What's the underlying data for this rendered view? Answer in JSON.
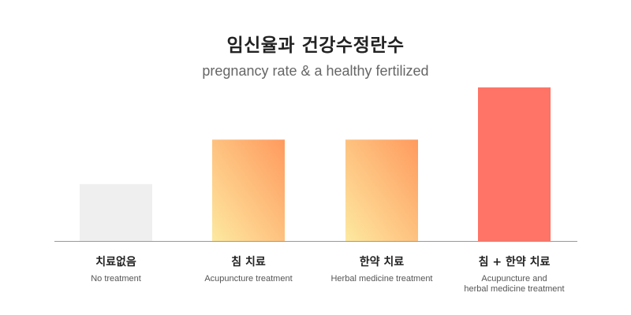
{
  "title": "임신율과 건강수정란수",
  "subtitle": "pregnancy rate & a healthy fertilized",
  "colors": {
    "none": "#efefef",
    "gradient_light": "#fde9a0",
    "gradient_dark": "#ff9a5e",
    "combined": "#ff7466",
    "baseline": "#999999"
  },
  "chart_data": {
    "type": "bar",
    "title": "임신율과 건강수정란수",
    "subtitle": "pregnancy rate & a healthy fertilized",
    "categories": [
      {
        "ko": "치료없음",
        "en": "No treatment"
      },
      {
        "ko": "침 치료",
        "en": "Acupuncture treatment"
      },
      {
        "ko": "한약 치료",
        "en": "Herbal medicine treatment"
      },
      {
        "ko": "침 + 한약 치료",
        "en": "Acupuncture and\nherbal medicine treatment"
      }
    ],
    "values": [
      37,
      66,
      66,
      100
    ],
    "ylim": [
      0,
      100
    ],
    "grid": false,
    "legend": "none"
  }
}
